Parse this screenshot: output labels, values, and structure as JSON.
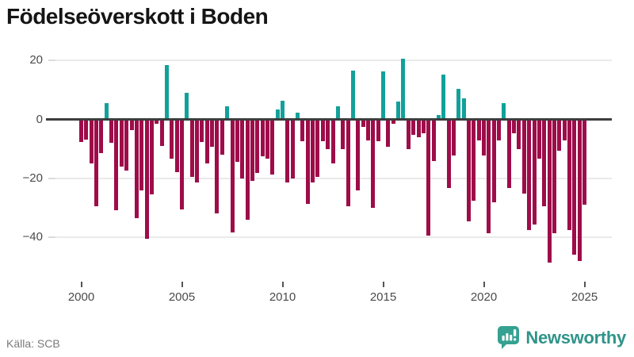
{
  "title": "Födelseöverskott i Boden",
  "source": "Källa: SCB",
  "brand": {
    "name": "Newsworthy",
    "icon": "newsworthy-speech-bubble-chart-icon"
  },
  "colors": {
    "positive": "#12a19a",
    "negative": "#9e0c49",
    "zero_axis": "#3d3d3d",
    "gridline": "#eaeaea",
    "axis_label": "#4b4b4b",
    "brand_teal": "#2f948a"
  },
  "chart_data": {
    "type": "bar",
    "title": "Födelseöverskott i Boden",
    "frequency": "quarterly",
    "start_period": "2000 Q1",
    "end_period": "2025 Q1",
    "x_ticks": [
      2000,
      2005,
      2010,
      2015,
      2020,
      2025
    ],
    "y_ticks": [
      20,
      0,
      -20,
      -40
    ],
    "ylim": [
      -50,
      22
    ],
    "grid": true,
    "legend": "none",
    "positive_color_meaning": "birth surplus (positive)",
    "negative_color_meaning": "birth deficit (negative)",
    "values": [
      -7.8,
      -6.8,
      -15,
      -29.5,
      -11.4,
      5,
      -8,
      -30.8,
      -16,
      -17.5,
      -3.5,
      -33.5,
      -24,
      -40.5,
      -25.5,
      -1.5,
      -9,
      18,
      -13.4,
      -18,
      -30.5,
      8.7,
      -19.6,
      -21.4,
      -7.7,
      -15,
      -9.3,
      -32,
      -12,
      4,
      -38.5,
      -14.4,
      -20,
      -34,
      -21,
      -18.3,
      -12.4,
      -13.2,
      -18.6,
      3,
      6,
      -21.5,
      -20,
      2,
      -7.5,
      -28.6,
      -21.4,
      -19.4,
      -7.5,
      -10.2,
      -15,
      4,
      -10.2,
      -29.4,
      16.1,
      -24,
      -2.5,
      -7.2,
      -30,
      -7.5,
      16,
      -9.3,
      -1.6,
      5.8,
      20.2,
      -10.2,
      -5.2,
      -6.1,
      -4.8,
      -39.6,
      -14.2,
      1,
      14.9,
      -23.2,
      -12.2,
      9.9,
      6.8,
      -34.5,
      -27.7,
      -7.2,
      -12.3,
      -38.7,
      -28.2,
      -7,
      5.1,
      -23.2,
      -4.8,
      -10.2,
      -25.3,
      -37.5,
      -35.7,
      -13.2,
      -29.4,
      -48.6,
      -38.6,
      -10.6,
      -7,
      -37.5,
      -46,
      -48,
      -29
    ]
  }
}
